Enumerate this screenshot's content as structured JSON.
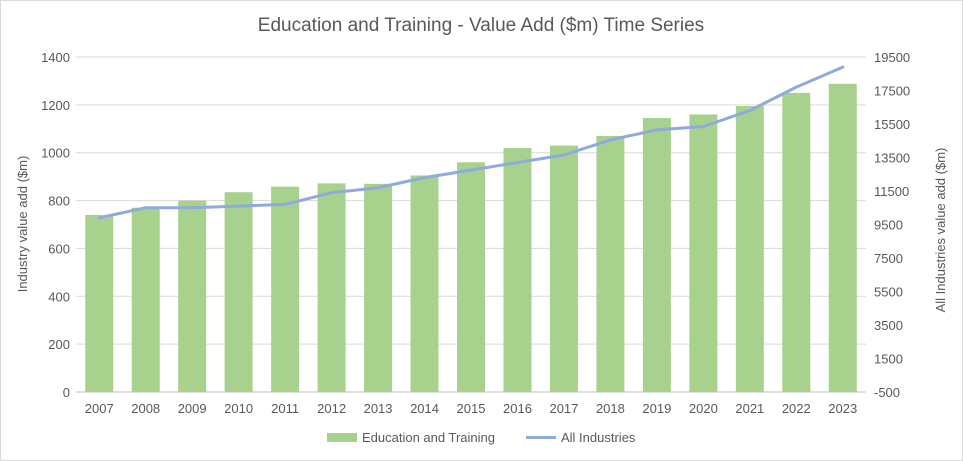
{
  "chart_data": {
    "type": "bar",
    "title": "Education and Training - Value Add ($m) Time Series",
    "ylabel": "Industry value add ($m)",
    "y2label": "All Industries value add ($m)",
    "xlabel": "",
    "categories": [
      "2007",
      "2008",
      "2009",
      "2010",
      "2011",
      "2012",
      "2013",
      "2014",
      "2015",
      "2016",
      "2017",
      "2018",
      "2019",
      "2020",
      "2021",
      "2022",
      "2023"
    ],
    "ylim": [
      0,
      1400
    ],
    "yticks": [
      0,
      200,
      400,
      600,
      800,
      1000,
      1200,
      1400
    ],
    "y2lim": [
      -500,
      19500
    ],
    "y2ticks": [
      -500,
      1500,
      3500,
      5500,
      7500,
      9500,
      11500,
      13500,
      15500,
      17500,
      19500
    ],
    "legend_position": "bottom",
    "grid": true,
    "series": [
      {
        "name": "Education and Training",
        "type": "bar",
        "axis": "left",
        "color": "#a9d18e",
        "values": [
          740,
          770,
          800,
          835,
          858,
          872,
          870,
          905,
          960,
          1020,
          1030,
          1070,
          1145,
          1160,
          1195,
          1250,
          1288
        ]
      },
      {
        "name": "All Industries",
        "type": "line",
        "axis": "right",
        "color": "#8faadc",
        "values": [
          9900,
          10500,
          10500,
          10600,
          10700,
          11400,
          11700,
          12300,
          12750,
          13200,
          13650,
          14550,
          15150,
          15350,
          16300,
          17700,
          18900
        ]
      }
    ]
  }
}
